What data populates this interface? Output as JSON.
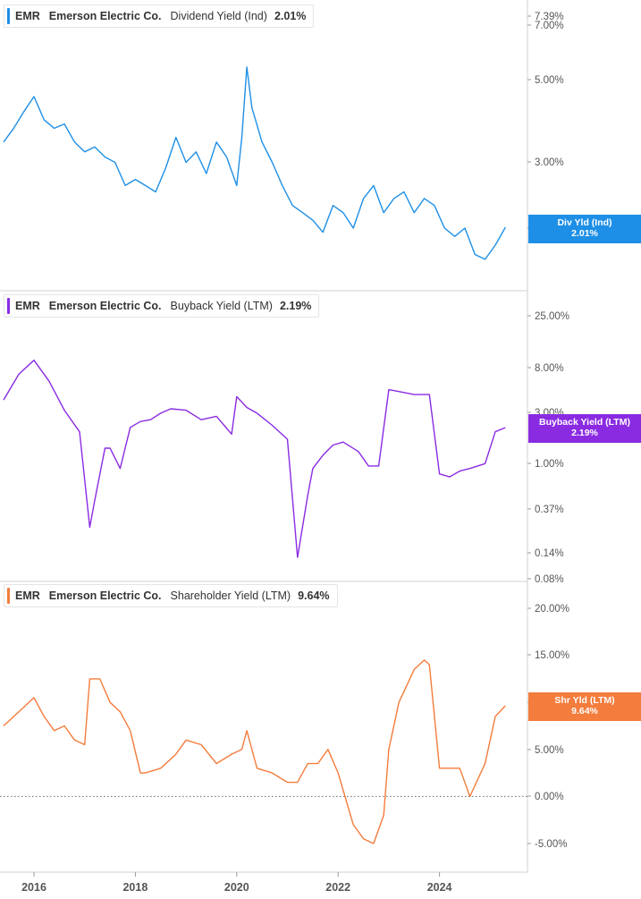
{
  "colors": {
    "dividend": "#1e8fe6",
    "buyback": "#8a2be2",
    "shareholder": "#f47c3c",
    "grid": "#d0d0d0",
    "axis_text": "#555555"
  },
  "x_axis": {
    "ticks": [
      "2016",
      "2018",
      "2020",
      "2022",
      "2024"
    ]
  },
  "panels": [
    {
      "key": "dividend",
      "legend": {
        "ticker": "EMR",
        "company": "Emerson Electric Co.",
        "metric": "Dividend Yield (Ind)",
        "value": "2.01%"
      },
      "badge": {
        "label": "Div Yld (Ind)",
        "value": "2.01%"
      },
      "y_ticks": [
        "7.39%",
        "7.00%",
        "5.00%",
        "3.00%",
        "2.0…"
      ]
    },
    {
      "key": "buyback",
      "legend": {
        "ticker": "EMR",
        "company": "Emerson Electric Co.",
        "metric": "Buyback Yield (LTM)",
        "value": "2.19%"
      },
      "badge": {
        "label": "Buyback Yield (LTM)",
        "value": "2.19%"
      },
      "y_ticks": [
        "25.00%",
        "8.00%",
        "3.00%",
        "1.00%",
        "0.37%",
        "0.14%",
        "0.08%"
      ]
    },
    {
      "key": "shareholder",
      "legend": {
        "ticker": "EMR",
        "company": "Emerson Electric Co.",
        "metric": "Shareholder Yield (LTM)",
        "value": "9.64%"
      },
      "badge": {
        "label": "Shr Yld (LTM)",
        "value": "9.64%"
      },
      "y_ticks": [
        "20.00%",
        "15.00%",
        "10.…",
        "5.00%",
        "0.00%",
        "-5.00%"
      ]
    }
  ],
  "chart_data": [
    {
      "type": "line",
      "scale": "log",
      "series": [
        {
          "name": "Dividend Yield (Ind)",
          "x": [
            2015.4,
            2015.6,
            2015.8,
            2016.0,
            2016.2,
            2016.4,
            2016.6,
            2016.8,
            2017.0,
            2017.2,
            2017.4,
            2017.6,
            2017.8,
            2018.0,
            2018.2,
            2018.4,
            2018.6,
            2018.8,
            2019.0,
            2019.2,
            2019.4,
            2019.6,
            2019.8,
            2020.0,
            2020.1,
            2020.2,
            2020.3,
            2020.5,
            2020.7,
            2020.9,
            2021.1,
            2021.3,
            2021.5,
            2021.7,
            2021.9,
            2022.1,
            2022.3,
            2022.5,
            2022.7,
            2022.9,
            2023.1,
            2023.3,
            2023.5,
            2023.7,
            2023.9,
            2024.1,
            2024.3,
            2024.5,
            2024.7,
            2024.9,
            2025.1,
            2025.3
          ],
          "y": [
            3.4,
            3.7,
            4.1,
            4.5,
            3.9,
            3.7,
            3.8,
            3.4,
            3.2,
            3.3,
            3.1,
            3.0,
            2.6,
            2.7,
            2.6,
            2.5,
            2.9,
            3.5,
            3.0,
            3.2,
            2.8,
            3.4,
            3.1,
            2.6,
            3.5,
            5.4,
            4.2,
            3.4,
            3.0,
            2.6,
            2.3,
            2.2,
            2.1,
            1.95,
            2.3,
            2.2,
            2.0,
            2.4,
            2.6,
            2.2,
            2.4,
            2.5,
            2.2,
            2.4,
            2.3,
            2.0,
            1.9,
            2.0,
            1.7,
            1.65,
            1.8,
            2.01
          ]
        }
      ],
      "ylim": [
        1.5,
        7.39
      ]
    },
    {
      "type": "line",
      "scale": "log",
      "series": [
        {
          "name": "Buyback Yield (LTM)",
          "x": [
            2015.4,
            2015.7,
            2016.0,
            2016.3,
            2016.6,
            2016.9,
            2017.1,
            2017.2,
            2017.4,
            2017.5,
            2017.7,
            2017.9,
            2018.1,
            2018.3,
            2018.5,
            2018.7,
            2019.0,
            2019.3,
            2019.6,
            2019.9,
            2020.0,
            2020.2,
            2020.4,
            2020.7,
            2021.0,
            2021.2,
            2021.4,
            2021.5,
            2021.7,
            2021.9,
            2022.1,
            2022.4,
            2022.6,
            2022.8,
            2023.0,
            2023.2,
            2023.5,
            2023.8,
            2024.0,
            2024.2,
            2024.4,
            2024.6,
            2024.9,
            2025.1,
            2025.3
          ],
          "y": [
            4.0,
            7.0,
            9.5,
            6.0,
            3.2,
            2.0,
            0.25,
            0.45,
            1.4,
            1.4,
            0.9,
            2.2,
            2.5,
            2.6,
            3.0,
            3.3,
            3.2,
            2.6,
            2.8,
            1.9,
            4.3,
            3.4,
            3.0,
            2.3,
            1.7,
            0.13,
            0.5,
            0.9,
            1.2,
            1.5,
            1.6,
            1.3,
            0.95,
            0.95,
            5.0,
            4.8,
            4.5,
            4.5,
            0.8,
            0.75,
            0.85,
            0.9,
            1.0,
            2.0,
            2.19
          ]
        }
      ],
      "ylim": [
        0.08,
        25
      ]
    },
    {
      "type": "line",
      "scale": "linear",
      "series": [
        {
          "name": "Shareholder Yield (LTM)",
          "x": [
            2015.4,
            2015.6,
            2015.8,
            2016.0,
            2016.2,
            2016.4,
            2016.6,
            2016.8,
            2017.0,
            2017.1,
            2017.3,
            2017.5,
            2017.7,
            2017.9,
            2018.1,
            2018.2,
            2018.5,
            2018.8,
            2019.0,
            2019.3,
            2019.6,
            2019.9,
            2020.1,
            2020.2,
            2020.4,
            2020.7,
            2021.0,
            2021.2,
            2021.4,
            2021.6,
            2021.8,
            2022.0,
            2022.3,
            2022.5,
            2022.7,
            2022.9,
            2023.0,
            2023.2,
            2023.5,
            2023.7,
            2023.8,
            2024.0,
            2024.2,
            2024.4,
            2024.6,
            2024.9,
            2025.1,
            2025.3
          ],
          "y": [
            7.5,
            8.5,
            9.5,
            10.5,
            8.5,
            7.0,
            7.5,
            6.0,
            5.5,
            12.5,
            12.5,
            10.0,
            9.0,
            7.0,
            2.5,
            2.5,
            3.0,
            4.5,
            6.0,
            5.5,
            3.5,
            4.5,
            5.0,
            7.0,
            3.0,
            2.5,
            1.5,
            1.5,
            3.5,
            3.5,
            5.0,
            2.5,
            -3.0,
            -4.5,
            -5.0,
            -2.0,
            5.0,
            10.0,
            13.5,
            14.5,
            14.0,
            3.0,
            3.0,
            3.0,
            0.0,
            3.5,
            8.5,
            9.64
          ]
        }
      ],
      "ylim": [
        -7,
        21.5
      ],
      "reference_line": 0
    }
  ]
}
